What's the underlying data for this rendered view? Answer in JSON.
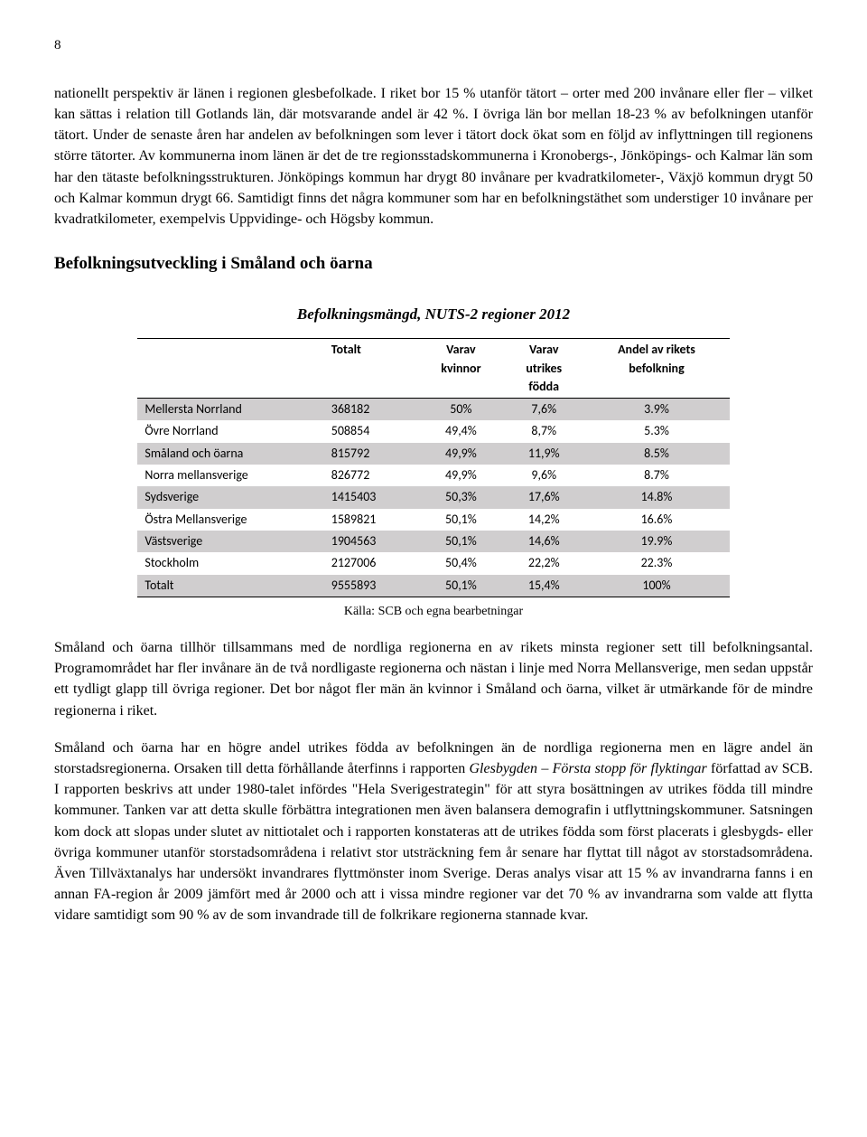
{
  "page_number": "8",
  "para1": "nationellt perspektiv är länen i regionen glesbefolkade. I riket bor 15 % utanför tätort – orter med 200 invånare eller fler – vilket kan sättas i relation till Gotlands län, där motsvarande andel är 42 %. I övriga län bor mellan 18-23 % av befolkningen utanför tätort. Under de senaste åren har andelen av befolkningen som lever i tätort dock ökat som en följd av inflyttningen till regionens större tätorter. Av kommunerna inom länen är det de tre regionsstadskommunerna i Kronobergs-, Jönköpings- och Kalmar län som har den tätaste befolkningsstrukturen. Jönköpings kommun har drygt 80 invånare per kvadratkilometer-, Växjö kommun drygt 50 och Kalmar kommun drygt 66. Samtidigt finns det några kommuner som har en befolkningstäthet som understiger 10 invånare per kvadratkilometer, exempelvis Uppvidinge- och Högsby kommun.",
  "heading1": "Befolkningsutveckling i Småland och öarna",
  "heading2": "Befolkningsmängd, NUTS-2 regioner 2012",
  "table": {
    "columns": [
      "",
      "Totalt",
      "Varav kvinnor",
      "Varav utrikes födda",
      "Andel av rikets befolkning"
    ],
    "col1_line2": "kvinnor",
    "col2_line1": "Varav",
    "col2_line2": "utrikes",
    "col2_line3": "födda",
    "col3_line1": "Andel av rikets",
    "col3_line2": "befolkning",
    "rows": [
      {
        "label": "Mellersta Norrland",
        "totalt": "368182",
        "kvinnor": "50%",
        "utrikes": "7,6%",
        "andel": "3.9%",
        "shade": true
      },
      {
        "label": "Övre Norrland",
        "totalt": "508854",
        "kvinnor": "49,4%",
        "utrikes": "8,7%",
        "andel": "5.3%",
        "shade": false
      },
      {
        "label": "Småland och öarna",
        "totalt": "815792",
        "kvinnor": "49,9%",
        "utrikes": "11,9%",
        "andel": "8.5%",
        "shade": true
      },
      {
        "label": "Norra mellansverige",
        "totalt": "826772",
        "kvinnor": "49,9%",
        "utrikes": "9,6%",
        "andel": "8.7%",
        "shade": false
      },
      {
        "label": "Sydsverige",
        "totalt": "1415403",
        "kvinnor": "50,3%",
        "utrikes": "17,6%",
        "andel": "14.8%",
        "shade": true
      },
      {
        "label": "Östra Mellansverige",
        "totalt": "1589821",
        "kvinnor": "50,1%",
        "utrikes": "14,2%",
        "andel": "16.6%",
        "shade": false
      },
      {
        "label": "Västsverige",
        "totalt": "1904563",
        "kvinnor": "50,1%",
        "utrikes": "14,6%",
        "andel": "19.9%",
        "shade": true
      },
      {
        "label": "Stockholm",
        "totalt": "2127006",
        "kvinnor": "50,4%",
        "utrikes": "22,2%",
        "andel": "22.3%",
        "shade": false
      },
      {
        "label": "Totalt",
        "totalt": "9555893",
        "kvinnor": "50,1%",
        "utrikes": "15,4%",
        "andel": "100%",
        "shade": true
      }
    ],
    "source": "Källa: SCB och egna bearbetningar"
  },
  "para2": "Småland och öarna tillhör tillsammans med de nordliga regionerna en av rikets minsta regioner sett till befolkningsantal. Programområdet har fler invånare än de två nordligaste regionerna och nästan i linje med Norra Mellansverige, men sedan uppstår ett tydligt glapp till övriga regioner. Det bor något fler män än kvinnor i Småland och öarna, vilket är utmärkande för de mindre regionerna i riket.",
  "para3_a": "Småland och öarna har en högre andel utrikes födda av befolkningen än de nordliga regionerna men en lägre andel än storstadsregionerna. Orsaken till detta förhållande återfinns i rapporten ",
  "para3_italic1": "Glesbygden – Första stopp för flyktingar",
  "para3_b": " författad av SCB. I rapporten beskrivs att under 1980-talet infördes \"Hela Sverigestrategin\" för att styra bosättningen av utrikes födda till mindre kommuner. Tanken var att detta skulle förbättra integrationen men även balansera demografin i utflyttningskommuner. Satsningen kom dock att slopas under slutet av nittiotalet och i rapporten konstateras att de utrikes födda som först placerats i glesbygds- eller övriga kommuner utanför storstadsområdena i relativt stor utsträckning fem år senare har flyttat till något av storstadsområdena. Även Tillväxtanalys har undersökt invandrares flyttmönster inom Sverige. Deras analys visar att 15 % av invandrarna fanns i en annan FA-region år 2009 jämfört med år 2000 och att i vissa mindre regioner var det 70 % av invandrarna som valde att flytta vidare samtidigt som 90 % av de som invandrade till de folkrikare regionerna stannade kvar."
}
